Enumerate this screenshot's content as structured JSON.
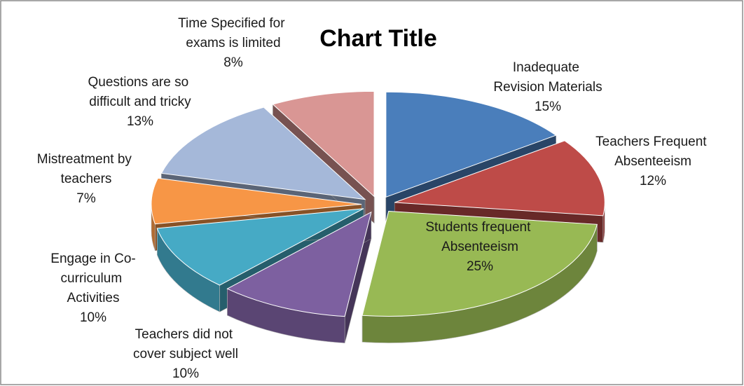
{
  "chart_data": {
    "type": "pie",
    "title": "Chart Title",
    "categories": [
      "Inadequate Revision Materials",
      "Teachers Frequent Absenteeism",
      "Students frequent Absenteeism",
      "Teachers did not cover subject well",
      "Engage in Co-curriculum Activities",
      "Mistreatment by teachers",
      "Questions are so difficult and tricky",
      "Time Specified for exams is limited"
    ],
    "values": [
      15,
      12,
      25,
      10,
      10,
      7,
      13,
      8
    ],
    "value_labels": [
      "15%",
      "12%",
      "25%",
      "10%",
      "10%",
      "7%",
      "13%",
      "8%"
    ],
    "colors": [
      "#4a7ebb",
      "#be4b48",
      "#98b954",
      "#7d60a0",
      "#46aac5",
      "#f79646",
      "#a5b8d9",
      "#d99694"
    ]
  }
}
